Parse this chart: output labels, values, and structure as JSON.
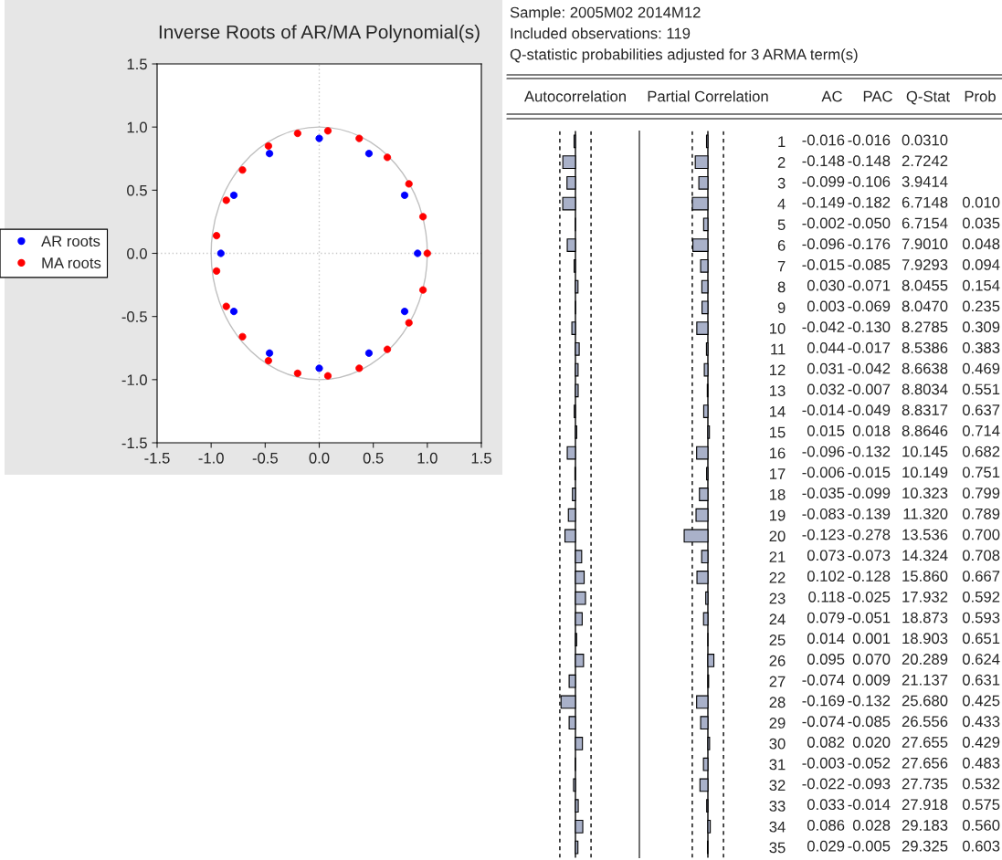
{
  "chart_data": [
    {
      "type": "scatter",
      "title": "Inverse Roots of AR/MA Polynomial(s)",
      "series": [
        {
          "name": "AR roots",
          "color": "#0000ff",
          "marker": "circle",
          "x": [
            0,
            0.46,
            0.79,
            0.91,
            0.79,
            0.46,
            0,
            -0.46,
            -0.79,
            -0.91,
            -0.79,
            -0.46
          ],
          "values": [
            0.91,
            0.79,
            0.46,
            0,
            -0.46,
            -0.79,
            -0.91,
            -0.79,
            -0.46,
            0,
            0.46,
            0.79
          ]
        },
        {
          "name": "MA roots",
          "color": "#ff0000",
          "marker": "circle",
          "x": [
            1.0,
            0.96,
            0.83,
            0.63,
            0.37,
            0.08,
            -0.2,
            -0.47,
            -0.71,
            -0.86,
            -0.95,
            -0.95,
            -0.86,
            -0.71,
            -0.47,
            -0.2,
            0.08,
            0.37,
            0.63,
            0.83,
            0.96
          ],
          "values": [
            0,
            0.29,
            0.55,
            0.76,
            0.91,
            0.97,
            0.95,
            0.85,
            0.66,
            0.42,
            0.14,
            -0.14,
            -0.42,
            -0.66,
            -0.85,
            -0.95,
            -0.97,
            -0.91,
            -0.76,
            -0.55,
            -0.29
          ]
        }
      ],
      "xlim": [
        -1.5,
        1.5
      ],
      "ylim": [
        -1.5,
        1.5
      ],
      "xticks": [
        -1.5,
        {
          "value": -1,
          "label": "-1.0"
        },
        -0.5,
        {
          "value": 0,
          "label": "0.0"
        },
        0.5,
        {
          "value": 1,
          "label": "1.0"
        },
        1.5
      ],
      "yticks": [
        -1.5,
        {
          "value": -1,
          "label": "-1.0"
        },
        -0.5,
        {
          "value": 0,
          "label": "0.0"
        },
        0.5,
        {
          "value": 1,
          "label": "1.0"
        },
        1.5
      ],
      "ref_lines": [
        {
          "axis": "x",
          "value": 0,
          "color": "#c8c8c8",
          "line_style": "dotted"
        },
        {
          "axis": "y",
          "value": 0,
          "color": "#c8c8c8",
          "line_style": "dotted"
        }
      ],
      "grid": false,
      "legend": "left"
    },
    {
      "type": "bar",
      "orientation": "horizontal",
      "title": "Autocorrelation",
      "tick_labels": false,
      "annotations": [
        "AC"
      ],
      "categories": [
        "1",
        "2",
        "3",
        "4",
        "5",
        "6",
        "7",
        "8",
        "9",
        "10",
        "11",
        "12",
        "13",
        "14",
        "15",
        "16",
        "17",
        "18",
        "19",
        "20",
        "21",
        "22",
        "23",
        "24",
        "25",
        "26",
        "27",
        "28",
        "29",
        "30",
        "31",
        "32",
        "33",
        "34",
        "35"
      ],
      "series": [
        {
          "color": "#a9b1c9",
          "values": [
            -0.016,
            -0.148,
            -0.099,
            -0.149,
            -0.002,
            -0.096,
            -0.015,
            0.03,
            0.003,
            -0.042,
            0.044,
            0.031,
            0.032,
            -0.014,
            0.015,
            -0.096,
            -0.006,
            -0.035,
            -0.083,
            -0.123,
            0.073,
            0.102,
            0.118,
            0.079,
            0.014,
            0.095,
            -0.074,
            -0.169,
            -0.074,
            0.082,
            -0.003,
            -0.022,
            0.033,
            0.086,
            0.029
          ],
          "value_labels": [
            "-0.016",
            "-0.148",
            "-0.099",
            "-0.149",
            "-0.002",
            "-0.096",
            "-0.015",
            "0.030",
            "0.003",
            "-0.042",
            "0.044",
            "0.031",
            "0.032",
            "-0.014",
            "0.015",
            "-0.096",
            "-0.006",
            "-0.035",
            "-0.083",
            "-0.123",
            "0.073",
            "0.102",
            "0.118",
            "0.079",
            "0.014",
            "0.095",
            "-0.074",
            "-0.169",
            "-0.074",
            "0.082",
            "-0.003",
            "-0.022",
            "0.033",
            "0.086",
            "0.029"
          ]
        }
      ],
      "ref_lines": [
        {
          "axis": "x",
          "value": 0,
          "color": "#000000",
          "line_style": "solid"
        },
        {
          "axis": "x",
          "value": -0.183,
          "color": "#000000",
          "line_style": "dashed"
        },
        {
          "axis": "x",
          "value": 0.183,
          "color": "#000000",
          "line_style": "dashed"
        }
      ]
    },
    {
      "type": "bar",
      "orientation": "horizontal",
      "title": "Partial Correlation",
      "tick_labels": "y",
      "annotations": [
        "PAC"
      ],
      "categories": [
        "1",
        "2",
        "3",
        "4",
        "5",
        "6",
        "7",
        "8",
        "9",
        "10",
        "11",
        "12",
        "13",
        "14",
        "15",
        "16",
        "17",
        "18",
        "19",
        "20",
        "21",
        "22",
        "23",
        "24",
        "25",
        "26",
        "27",
        "28",
        "29",
        "30",
        "31",
        "32",
        "33",
        "34",
        "35"
      ],
      "series": [
        {
          "color": "#a9b1c9",
          "values": [
            -0.016,
            -0.148,
            -0.106,
            -0.182,
            -0.05,
            -0.176,
            -0.085,
            -0.071,
            -0.069,
            -0.13,
            -0.017,
            -0.042,
            -0.007,
            -0.049,
            0.018,
            -0.132,
            -0.015,
            -0.099,
            -0.139,
            -0.278,
            -0.073,
            -0.128,
            -0.025,
            -0.051,
            0.001,
            0.07,
            0.009,
            -0.132,
            -0.085,
            0.02,
            -0.052,
            -0.093,
            -0.014,
            0.028,
            -0.005
          ],
          "value_labels": [
            "-0.016",
            "-0.148",
            "-0.106",
            "-0.182",
            "-0.050",
            "-0.176",
            "-0.085",
            "-0.071",
            "-0.069",
            "-0.130",
            "-0.017",
            "-0.042",
            "-0.007",
            "-0.049",
            "0.018",
            "-0.132",
            "-0.015",
            "-0.099",
            "-0.139",
            "-0.278",
            "-0.073",
            "-0.128",
            "-0.025",
            "-0.051",
            "0.001",
            "0.070",
            "0.009",
            "-0.132",
            "-0.085",
            "0.020",
            "-0.052",
            "-0.093",
            "-0.014",
            "0.028",
            "-0.005"
          ]
        }
      ],
      "ref_lines": [
        {
          "axis": "x",
          "value": 0,
          "color": "#000000",
          "line_style": "solid"
        },
        {
          "axis": "x",
          "value": -0.183,
          "color": "#000000",
          "line_style": "dashed"
        },
        {
          "axis": "x",
          "value": 0.183,
          "color": "#000000",
          "line_style": "dashed"
        }
      ]
    },
    {
      "type": "other",
      "annotations": [
        "Sample: 2005M02 2014M12",
        "Included observations: 119",
        "Q-statistic probabilities adjusted for 3 ARMA term(s)",
        "Q-Stat\tProb",
        "0.0310",
        "2.7242",
        "3.9414",
        "6.7148\t0.010",
        "6.7154\t0.035",
        "7.9010\t0.048",
        "7.9293\t0.094",
        "8.0455\t0.154",
        "8.0470\t0.235",
        "8.2785\t0.309",
        "8.5386\t0.383",
        "8.6638\t0.469",
        "8.8034\t0.551",
        "8.8317\t0.637",
        "8.8646\t0.714",
        "10.145\t0.682",
        "10.149\t0.751",
        "10.323\t0.799",
        "11.320\t0.789",
        "13.536\t0.700",
        "14.324\t0.708",
        "15.860\t0.667",
        "17.932\t0.592",
        "18.873\t0.593",
        "18.903\t0.651",
        "20.289\t0.624",
        "21.137\t0.631",
        "25.680\t0.425",
        "26.556\t0.433",
        "27.655\t0.429",
        "27.656\t0.483",
        "27.735\t0.532",
        "27.918\t0.575",
        "29.183\t0.560",
        "29.325\t0.603"
      ]
    }
  ]
}
